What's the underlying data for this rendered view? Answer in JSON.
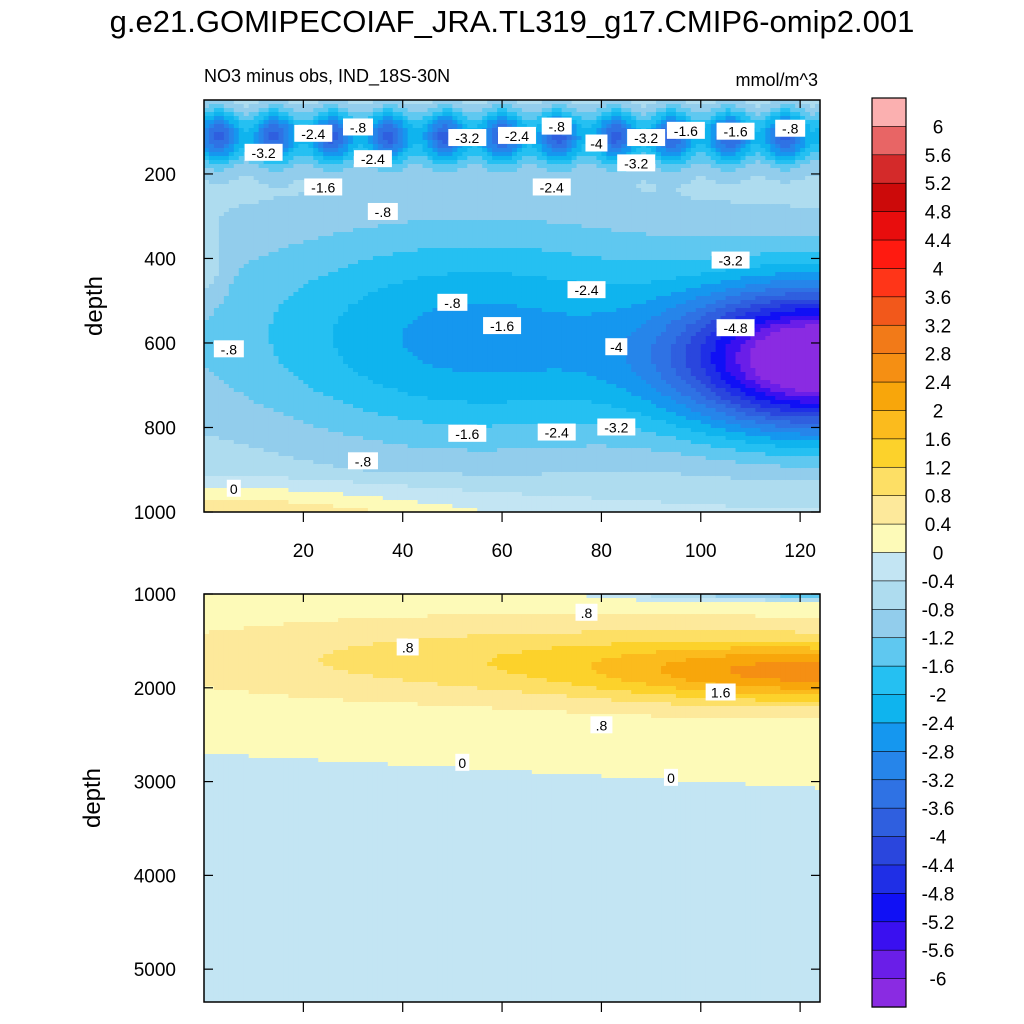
{
  "title": "g.e21.GOMIPECOIAF_JRA.TL319_g17.CMIP6-omip2.001",
  "subtitle_left": "NO3 minus obs, IND_18S-30N",
  "subtitle_right": "mmol/m^3",
  "colors": {
    "levels": [
      -6.0,
      -5.6,
      -5.2,
      -4.8,
      -4.4,
      -4.0,
      -3.6,
      -3.2,
      -2.8,
      -2.4,
      -2.0,
      -1.6,
      -1.2,
      -0.8,
      -0.4,
      0.0,
      0.4,
      0.8,
      1.2,
      1.6,
      2.0,
      2.4,
      2.8,
      3.2,
      3.6,
      4.0,
      4.4,
      4.8,
      5.2,
      5.6,
      6.0
    ],
    "fills": [
      "#8a2be2",
      "#6a1ee8",
      "#3a10f0",
      "#1010f5",
      "#1f2fe6",
      "#2a46dd",
      "#2f5fdf",
      "#2f72e4",
      "#2685ea",
      "#1597ef",
      "#0fb4ee",
      "#25c0f2",
      "#5fc8f0",
      "#92cdec",
      "#aedcef",
      "#c3e5f3",
      "#fdfab8",
      "#fde99b",
      "#fddf65",
      "#fcd22b",
      "#fbbb1d",
      "#f8a60b",
      "#f58f13",
      "#f27a18",
      "#f2581b",
      "#ff3518",
      "#ff1a10",
      "#e80d0d",
      "#cc0a0a",
      "#d42a2a",
      "#e86565",
      "#fbb0b0"
    ],
    "contour_line": "#000000"
  },
  "chart_data": [
    {
      "type": "heatmap",
      "panel": "upper",
      "title": "NO3 minus obs, IND_18S-30N",
      "units": "mmol/m^3",
      "xlabel": "",
      "ylabel": "depth",
      "xlim": [
        0,
        124
      ],
      "ylim": [
        1000,
        25
      ],
      "xticks": [
        20,
        40,
        60,
        80,
        100,
        120
      ],
      "yticks": [
        200,
        400,
        600,
        800,
        1000
      ],
      "contour_interval": 0.4,
      "contour_labels": [
        {
          "text": "-2.4",
          "x": 22,
          "y": 105
        },
        {
          "text": "-.8",
          "x": 31,
          "y": 90
        },
        {
          "text": "-3.2",
          "x": 53,
          "y": 115
        },
        {
          "text": "-2.4",
          "x": 63,
          "y": 110
        },
        {
          "text": "-.8",
          "x": 71,
          "y": 88
        },
        {
          "text": "-4",
          "x": 79,
          "y": 128
        },
        {
          "text": "-3.2",
          "x": 89,
          "y": 115
        },
        {
          "text": "-1.6",
          "x": 97,
          "y": 98
        },
        {
          "text": "-1.6",
          "x": 107,
          "y": 100
        },
        {
          "text": "-.8",
          "x": 118,
          "y": 93
        },
        {
          "text": "-3.2",
          "x": 12,
          "y": 150
        },
        {
          "text": "-2.4",
          "x": 34,
          "y": 165
        },
        {
          "text": "-3.2",
          "x": 87,
          "y": 175
        },
        {
          "text": "-1.6",
          "x": 24,
          "y": 232
        },
        {
          "text": "-.8",
          "x": 36,
          "y": 290
        },
        {
          "text": "-2.4",
          "x": 70,
          "y": 232
        },
        {
          "text": "-3.2",
          "x": 106,
          "y": 405
        },
        {
          "text": "-2.4",
          "x": 77,
          "y": 475
        },
        {
          "text": "-.8",
          "x": 50,
          "y": 505
        },
        {
          "text": "-1.6",
          "x": 60,
          "y": 560
        },
        {
          "text": "-4",
          "x": 83,
          "y": 610
        },
        {
          "text": "-4.8",
          "x": 107,
          "y": 565
        },
        {
          "text": "-.8",
          "x": 5,
          "y": 615
        },
        {
          "text": "-1.6",
          "x": 53,
          "y": 815
        },
        {
          "text": "-2.4",
          "x": 71,
          "y": 812
        },
        {
          "text": "-3.2",
          "x": 83,
          "y": 800
        },
        {
          "text": "-.8",
          "x": 32,
          "y": 880
        },
        {
          "text": "0",
          "x": 6,
          "y": 945
        }
      ]
    },
    {
      "type": "heatmap",
      "panel": "lower",
      "xlabel": "",
      "ylabel": "depth",
      "xlim": [
        0,
        124
      ],
      "ylim": [
        5350,
        1000
      ],
      "yticks": [
        1000,
        2000,
        3000,
        4000,
        5000
      ],
      "contour_interval": 0.4,
      "contour_labels": [
        {
          "text": ".8",
          "x": 77,
          "y": 1200
        },
        {
          "text": ".8",
          "x": 41,
          "y": 1570
        },
        {
          "text": "1.6",
          "x": 104,
          "y": 2050
        },
        {
          "text": ".8",
          "x": 80,
          "y": 2400
        },
        {
          "text": "0",
          "x": 52,
          "y": 2800
        },
        {
          "text": "0",
          "x": 94,
          "y": 2960
        }
      ]
    }
  ],
  "colorbar": {
    "labels": [
      "6",
      "5.6",
      "5.2",
      "4.8",
      "4.4",
      "4",
      "3.6",
      "3.2",
      "2.8",
      "2.4",
      "2",
      "1.6",
      "1.2",
      "0.8",
      "0.4",
      "0",
      "-0.4",
      "-0.8",
      "-1.2",
      "-1.6",
      "-2",
      "-2.4",
      "-2.8",
      "-3.2",
      "-3.6",
      "-4",
      "-4.4",
      "-4.8",
      "-5.2",
      "-5.6",
      "-6"
    ]
  }
}
